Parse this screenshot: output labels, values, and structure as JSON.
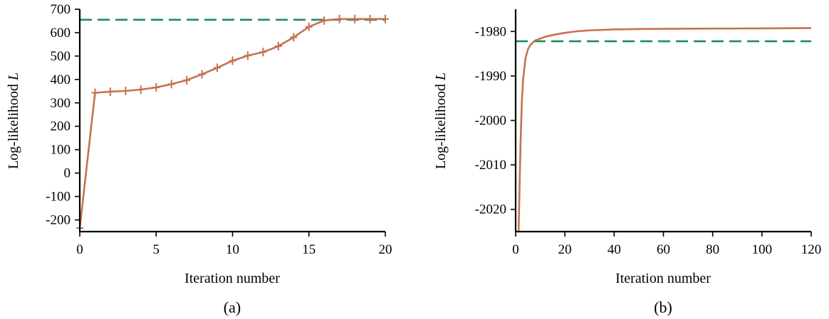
{
  "colors": {
    "series": "#C8704F",
    "reference": "#1F8A65",
    "axis": "#000000"
  },
  "chart_data": [
    {
      "type": "line",
      "panel_label": "(a)",
      "xlabel": "Iteration number",
      "ylabel_main": "Log-likelihood ",
      "ylabel_italic": "L",
      "xlim": [
        0,
        20
      ],
      "ylim": [
        -250,
        700
      ],
      "xticks": [
        0,
        5,
        10,
        15,
        20
      ],
      "yticks": [
        -200,
        -100,
        0,
        100,
        200,
        300,
        400,
        500,
        600,
        700
      ],
      "grid": false,
      "markers": "plus",
      "series": [
        {
          "x": [
            0,
            1,
            2,
            3,
            4,
            5,
            6,
            7,
            8,
            9,
            10,
            11,
            12,
            13,
            14,
            15,
            16,
            17,
            18,
            19,
            20
          ],
          "values": [
            -235,
            343,
            348,
            351,
            357,
            366,
            380,
            397,
            422,
            450,
            480,
            502,
            517,
            542,
            580,
            625,
            652,
            658,
            658,
            658,
            658
          ]
        }
      ],
      "reference_line": 655
    },
    {
      "type": "line",
      "panel_label": "(b)",
      "xlabel": "Iteration number",
      "ylabel_main": "Log-likelihood ",
      "ylabel_italic": "L",
      "xlim": [
        0,
        120
      ],
      "ylim": [
        -2025,
        -1975
      ],
      "xticks": [
        0,
        20,
        40,
        60,
        80,
        100,
        120
      ],
      "yticks": [
        -2020,
        -2010,
        -2000,
        -1990,
        -1980
      ],
      "grid": false,
      "markers": "none",
      "series": [
        {
          "x": [
            1.2,
            1.6,
            2,
            2.5,
            3,
            4,
            5,
            6,
            7,
            8,
            10,
            12,
            15,
            20,
            25,
            30,
            40,
            50,
            60,
            80,
            100,
            120
          ],
          "values": [
            -2025,
            -2015,
            -2005,
            -1996,
            -1991,
            -1986,
            -1984,
            -1983,
            -1982.5,
            -1982,
            -1981.6,
            -1981.2,
            -1980.8,
            -1980.3,
            -1979.95,
            -1979.75,
            -1979.55,
            -1979.45,
            -1979.4,
            -1979.35,
            -1979.3,
            -1979.25
          ]
        }
      ],
      "reference_line": -1982.2
    }
  ]
}
